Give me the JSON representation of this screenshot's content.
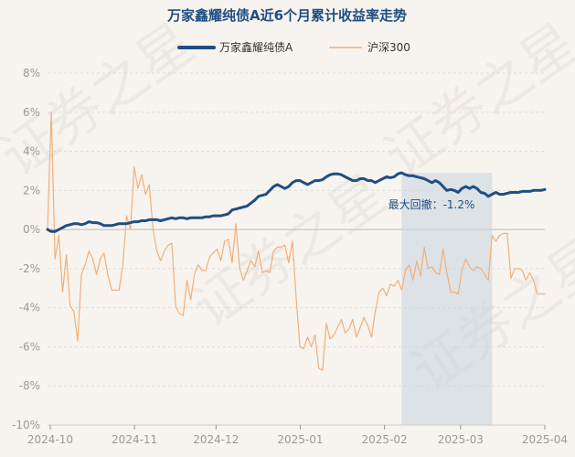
{
  "chart_data": {
    "type": "line",
    "title": "万家鑫耀纯债A近6个月累计收益率走势",
    "xlabel": "",
    "ylabel": "",
    "x_ticks": [
      "2024-10",
      "2024-11",
      "2024-12",
      "2025-01",
      "2025-02",
      "2025-03",
      "2025-04"
    ],
    "x_range": [
      "2024-09-30",
      "2025-04-01"
    ],
    "y_ticks": [
      "8%",
      "6%",
      "4%",
      "2%",
      "0%",
      "-2%",
      "-4%",
      "-6%",
      "-8%",
      "-10%"
    ],
    "ylim": [
      -10,
      8
    ],
    "grid": true,
    "legend_position": "top-center",
    "series": [
      {
        "name": "万家鑫耀纯债A",
        "color": "#1f4e82",
        "values": [
          [
            0,
            0
          ],
          [
            1,
            -0.1
          ],
          [
            2,
            -0.1
          ],
          [
            3,
            0
          ],
          [
            4,
            0.1
          ],
          [
            5,
            0.2
          ],
          [
            6,
            0.25
          ],
          [
            7,
            0.3
          ],
          [
            8,
            0.3
          ],
          [
            9,
            0.25
          ],
          [
            10,
            0.3
          ],
          [
            11,
            0.4
          ],
          [
            12,
            0.35
          ],
          [
            13,
            0.35
          ],
          [
            14,
            0.3
          ],
          [
            15,
            0.2
          ],
          [
            16,
            0.2
          ],
          [
            17,
            0.2
          ],
          [
            18,
            0.25
          ],
          [
            19,
            0.3
          ],
          [
            20,
            0.3
          ],
          [
            21,
            0.3
          ],
          [
            22,
            0.35
          ],
          [
            23,
            0.4
          ],
          [
            24,
            0.4
          ],
          [
            25,
            0.45
          ],
          [
            26,
            0.45
          ],
          [
            27,
            0.5
          ],
          [
            28,
            0.5
          ],
          [
            29,
            0.5
          ],
          [
            30,
            0.45
          ],
          [
            31,
            0.5
          ],
          [
            32,
            0.55
          ],
          [
            33,
            0.6
          ],
          [
            34,
            0.55
          ],
          [
            35,
            0.6
          ],
          [
            36,
            0.6
          ],
          [
            37,
            0.55
          ],
          [
            38,
            0.6
          ],
          [
            39,
            0.6
          ],
          [
            40,
            0.6
          ],
          [
            41,
            0.6
          ],
          [
            42,
            0.65
          ],
          [
            43,
            0.65
          ],
          [
            44,
            0.7
          ],
          [
            45,
            0.7
          ],
          [
            46,
            0.7
          ],
          [
            47,
            0.75
          ],
          [
            48,
            0.8
          ],
          [
            49,
            1.0
          ],
          [
            50,
            1.05
          ],
          [
            51,
            1.1
          ],
          [
            52,
            1.15
          ],
          [
            53,
            1.2
          ],
          [
            54,
            1.35
          ],
          [
            55,
            1.5
          ],
          [
            56,
            1.7
          ],
          [
            57,
            1.75
          ],
          [
            58,
            1.8
          ],
          [
            59,
            2.0
          ],
          [
            60,
            2.2
          ],
          [
            61,
            2.3
          ],
          [
            62,
            2.2
          ],
          [
            63,
            2.1
          ],
          [
            64,
            2.2
          ],
          [
            65,
            2.4
          ],
          [
            66,
            2.5
          ],
          [
            67,
            2.5
          ],
          [
            68,
            2.4
          ],
          [
            69,
            2.3
          ],
          [
            70,
            2.4
          ],
          [
            71,
            2.5
          ],
          [
            72,
            2.5
          ],
          [
            73,
            2.55
          ],
          [
            74,
            2.7
          ],
          [
            75,
            2.8
          ],
          [
            76,
            2.85
          ],
          [
            77,
            2.85
          ],
          [
            78,
            2.8
          ],
          [
            79,
            2.7
          ],
          [
            80,
            2.6
          ],
          [
            81,
            2.5
          ],
          [
            82,
            2.5
          ],
          [
            83,
            2.6
          ],
          [
            84,
            2.6
          ],
          [
            85,
            2.5
          ],
          [
            86,
            2.5
          ],
          [
            87,
            2.4
          ],
          [
            88,
            2.5
          ],
          [
            89,
            2.6
          ],
          [
            90,
            2.7
          ],
          [
            91,
            2.65
          ],
          [
            92,
            2.7
          ],
          [
            93,
            2.85
          ],
          [
            94,
            2.9
          ],
          [
            95,
            2.8
          ],
          [
            96,
            2.75
          ],
          [
            97,
            2.75
          ],
          [
            98,
            2.7
          ],
          [
            99,
            2.65
          ],
          [
            100,
            2.6
          ],
          [
            101,
            2.5
          ],
          [
            102,
            2.4
          ],
          [
            103,
            2.5
          ],
          [
            104,
            2.4
          ],
          [
            105,
            2.2
          ],
          [
            106,
            2.0
          ],
          [
            107,
            2.05
          ],
          [
            108,
            2.0
          ],
          [
            109,
            1.9
          ],
          [
            110,
            2.1
          ],
          [
            111,
            2.2
          ],
          [
            112,
            2.1
          ],
          [
            113,
            2.2
          ],
          [
            114,
            2.1
          ],
          [
            115,
            1.9
          ],
          [
            116,
            1.85
          ],
          [
            117,
            1.7
          ],
          [
            118,
            1.8
          ],
          [
            119,
            1.9
          ],
          [
            120,
            1.8
          ],
          [
            121,
            1.8
          ],
          [
            122,
            1.85
          ],
          [
            123,
            1.9
          ],
          [
            124,
            1.9
          ],
          [
            125,
            1.9
          ],
          [
            126,
            1.95
          ],
          [
            127,
            1.95
          ],
          [
            128,
            1.95
          ],
          [
            129,
            2.0
          ],
          [
            130,
            2.0
          ],
          [
            131,
            2.0
          ],
          [
            132,
            2.05
          ]
        ]
      },
      {
        "name": "沪深300",
        "color": "#f0b07a",
        "values": [
          [
            0,
            0
          ],
          [
            1,
            6.0
          ],
          [
            2,
            -1.5
          ],
          [
            3,
            -0.3
          ],
          [
            4,
            -3.2
          ],
          [
            5,
            -1.3
          ],
          [
            6,
            -3.9
          ],
          [
            7,
            -4.2
          ],
          [
            8,
            -5.7
          ],
          [
            9,
            -2.3
          ],
          [
            10,
            -1.8
          ],
          [
            11,
            -1.1
          ],
          [
            12,
            -1.5
          ],
          [
            13,
            -2.3
          ],
          [
            14,
            -1.5
          ],
          [
            15,
            -1.2
          ],
          [
            16,
            -2.3
          ],
          [
            17,
            -3.1
          ],
          [
            18,
            -3.1
          ],
          [
            19,
            -3.1
          ],
          [
            20,
            -1.8
          ],
          [
            21,
            0.7
          ],
          [
            22,
            0
          ],
          [
            23,
            3.2
          ],
          [
            24,
            2.1
          ],
          [
            25,
            2.8
          ],
          [
            26,
            1.8
          ],
          [
            27,
            2.3
          ],
          [
            28,
            0
          ],
          [
            29,
            -1.1
          ],
          [
            30,
            -1.6
          ],
          [
            31,
            -1.1
          ],
          [
            32,
            -0.8
          ],
          [
            33,
            -0.7
          ],
          [
            34,
            -3.9
          ],
          [
            35,
            -4.3
          ],
          [
            36,
            -4.4
          ],
          [
            37,
            -2.6
          ],
          [
            38,
            -3.6
          ],
          [
            39,
            -2.3
          ],
          [
            40,
            -1.8
          ],
          [
            41,
            -2.1
          ],
          [
            42,
            -2.1
          ],
          [
            43,
            -1.4
          ],
          [
            44,
            -1.2
          ],
          [
            45,
            -1.0
          ],
          [
            46,
            -1.6
          ],
          [
            47,
            -0.6
          ],
          [
            48,
            -0.5
          ],
          [
            49,
            -1.7
          ],
          [
            50,
            0.3
          ],
          [
            51,
            -2.0
          ],
          [
            52,
            -2.6
          ],
          [
            53,
            -2.1
          ],
          [
            54,
            -1.6
          ],
          [
            55,
            -1.9
          ],
          [
            56,
            -1.1
          ],
          [
            57,
            -2.2
          ],
          [
            58,
            -2.1
          ],
          [
            59,
            -2.2
          ],
          [
            60,
            -1.1
          ],
          [
            61,
            -0.9
          ],
          [
            62,
            -0.9
          ],
          [
            63,
            -0.8
          ],
          [
            64,
            -1.7
          ],
          [
            65,
            -0.6
          ],
          [
            66,
            -3.5
          ],
          [
            67,
            -6.0
          ],
          [
            68,
            -6.1
          ],
          [
            69,
            -5.5
          ],
          [
            70,
            -6.0
          ],
          [
            71,
            -5.4
          ],
          [
            72,
            -7.1
          ],
          [
            73,
            -7.2
          ],
          [
            74,
            -4.8
          ],
          [
            75,
            -5.6
          ],
          [
            76,
            -5.4
          ],
          [
            77,
            -5.0
          ],
          [
            78,
            -4.6
          ],
          [
            79,
            -5.3
          ],
          [
            80,
            -5.1
          ],
          [
            81,
            -4.6
          ],
          [
            82,
            -5.5
          ],
          [
            83,
            -5.0
          ],
          [
            84,
            -4.5
          ],
          [
            85,
            -4.9
          ],
          [
            86,
            -5.5
          ],
          [
            87,
            -4.2
          ],
          [
            88,
            -3.2
          ],
          [
            89,
            -3.0
          ],
          [
            90,
            -3.4
          ],
          [
            91,
            -2.8
          ],
          [
            92,
            -2.9
          ],
          [
            93,
            -2.6
          ],
          [
            94,
            -3.1
          ],
          [
            95,
            -2.1
          ],
          [
            96,
            -1.8
          ],
          [
            97,
            -2.6
          ],
          [
            98,
            -1.6
          ],
          [
            99,
            -2.4
          ],
          [
            100,
            -0.9
          ],
          [
            101,
            -2.0
          ],
          [
            102,
            -1.9
          ],
          [
            103,
            -2.2
          ],
          [
            104,
            -2.3
          ],
          [
            105,
            -1.0
          ],
          [
            106,
            -2.2
          ],
          [
            107,
            -3.2
          ],
          [
            108,
            -3.2
          ],
          [
            109,
            -3.3
          ],
          [
            110,
            -2.1
          ],
          [
            111,
            -1.5
          ],
          [
            112,
            -1.9
          ],
          [
            113,
            -2.1
          ],
          [
            114,
            -1.9
          ],
          [
            115,
            -2.0
          ],
          [
            116,
            -2.3
          ],
          [
            117,
            -2.6
          ],
          [
            118,
            -0.3
          ],
          [
            119,
            -0.6
          ],
          [
            120,
            -0.3
          ],
          [
            121,
            -0.2
          ],
          [
            122,
            -0.2
          ],
          [
            123,
            -2.5
          ],
          [
            124,
            -2.0
          ],
          [
            125,
            -2.0
          ],
          [
            126,
            -2.1
          ],
          [
            127,
            -2.6
          ],
          [
            128,
            -2.2
          ],
          [
            129,
            -2.6
          ],
          [
            130,
            -3.3
          ],
          [
            131,
            -3.3
          ],
          [
            132,
            -3.3
          ]
        ]
      }
    ],
    "max_drawdown": {
      "label": "最大回撤：-1.2%",
      "start_x": 94,
      "end_x": 118
    },
    "watermark": "证券之星"
  }
}
